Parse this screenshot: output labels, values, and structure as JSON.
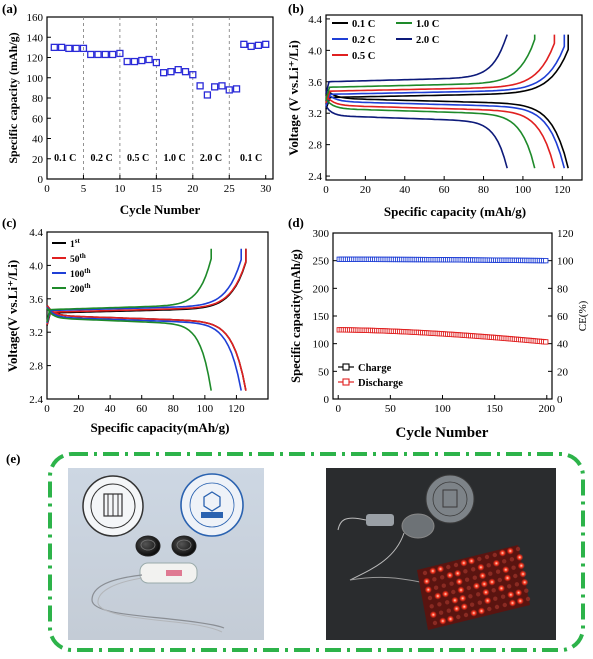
{
  "panel_labels": {
    "a": "(a)",
    "b": "(b)",
    "c": "(c)",
    "d": "(d)",
    "e": "(e)"
  },
  "colors": {
    "square_blue": "#2a2ad8",
    "green_border": "#2db34a",
    "red_led": "#ff2a1a"
  },
  "chart_data": [
    {
      "id": "a",
      "type": "scatter",
      "xlabel": "Cycle Number",
      "ylabel": "Specific capacity (mAh/g)",
      "xlim": [
        0,
        31
      ],
      "ylim": [
        0,
        160
      ],
      "xticks": [
        0,
        5,
        10,
        15,
        20,
        25,
        30
      ],
      "yticks": [
        0,
        20,
        40,
        60,
        80,
        100,
        120,
        140,
        160
      ],
      "marker": "open-square",
      "x": [
        1,
        2,
        3,
        4,
        5,
        6,
        7,
        8,
        9,
        10,
        11,
        12,
        13,
        14,
        15,
        16,
        17,
        18,
        19,
        20,
        21,
        22,
        23,
        24,
        25,
        26,
        27,
        28,
        29,
        30
      ],
      "values": [
        130,
        130,
        129,
        129,
        129,
        123,
        123,
        123,
        123,
        124,
        116,
        116,
        117,
        118,
        115,
        105,
        106,
        108,
        106,
        103,
        92,
        83,
        91,
        92,
        88,
        89,
        133,
        131,
        132,
        133
      ],
      "separators": [
        5,
        10,
        15,
        20,
        25
      ],
      "rate_labels": [
        "0.1 C",
        "0.2 C",
        "0.5 C",
        "1.0 C",
        "2.0 C",
        "0.1 C"
      ]
    },
    {
      "id": "b",
      "type": "line",
      "xlabel": "Specific capacity (mAh/g)",
      "ylabel": "Voltage (V vs.Li⁺/Li)",
      "xlim": [
        0,
        130
      ],
      "ylim": [
        2.35,
        4.45
      ],
      "xticks": [
        0,
        20,
        40,
        60,
        80,
        100,
        120
      ],
      "yticks": [
        2.4,
        2.8,
        3.2,
        3.6,
        4.0,
        4.4
      ],
      "legend": [
        "0.1 C",
        "1.0 C",
        "0.2 C",
        "2.0 C",
        "0.5 C"
      ],
      "series": [
        {
          "name": "0.1 C",
          "color": "#000000",
          "capacity": 123,
          "charge_plateau": 3.4,
          "discharge_plateau": 3.39,
          "discharge_end": 2.5
        },
        {
          "name": "0.2 C",
          "color": "#1f3fd6",
          "capacity": 121,
          "charge_plateau": 3.44,
          "discharge_plateau": 3.35,
          "discharge_end": 2.5
        },
        {
          "name": "0.5 C",
          "color": "#e02020",
          "capacity": 116,
          "charge_plateau": 3.48,
          "discharge_plateau": 3.3,
          "discharge_end": 2.5
        },
        {
          "name": "1.0 C",
          "color": "#1e8a2a",
          "capacity": 106,
          "charge_plateau": 3.53,
          "discharge_plateau": 3.26,
          "discharge_end": 2.5
        },
        {
          "name": "2.0 C",
          "color": "#0d1a7a",
          "capacity": 92,
          "charge_plateau": 3.6,
          "discharge_plateau": 3.17,
          "discharge_end": 2.5
        }
      ]
    },
    {
      "id": "c",
      "type": "line",
      "xlabel": "Specific capacity(mAh/g)",
      "ylabel": "Voltage(V vs.Li⁺/Li)",
      "xlim": [
        0,
        140
      ],
      "ylim": [
        2.4,
        4.4
      ],
      "xticks": [
        0,
        20,
        40,
        60,
        80,
        100,
        120
      ],
      "yticks": [
        2.4,
        2.8,
        3.2,
        3.6,
        4.0,
        4.4
      ],
      "legend": [
        {
          "base": "1",
          "sup": "st"
        },
        {
          "base": "50",
          "sup": "th"
        },
        {
          "base": "100",
          "sup": "th"
        },
        {
          "base": "200",
          "sup": "th"
        }
      ],
      "series": [
        {
          "name": "1st",
          "color": "#000000",
          "capacity": 126,
          "charge_plateau": 3.43,
          "discharge_plateau": 3.4,
          "discharge_end": 2.5
        },
        {
          "name": "50th",
          "color": "#e02020",
          "capacity": 126,
          "charge_plateau": 3.44,
          "discharge_plateau": 3.4,
          "discharge_end": 2.5
        },
        {
          "name": "100th",
          "color": "#1f3fd6",
          "capacity": 123,
          "charge_plateau": 3.46,
          "discharge_plateau": 3.38,
          "discharge_end": 2.5
        },
        {
          "name": "200th",
          "color": "#1e8a2a",
          "capacity": 104,
          "charge_plateau": 3.47,
          "discharge_plateau": 3.37,
          "discharge_end": 2.5
        }
      ]
    },
    {
      "id": "d",
      "type": "scatter",
      "xlabel": "Cycle Number",
      "ylabel": "Specific capacity(mAh/g)",
      "y2label": "CE(%)",
      "xlim": [
        -5,
        205
      ],
      "ylim": [
        0,
        300
      ],
      "y2lim": [
        0,
        120
      ],
      "xticks": [
        0,
        50,
        100,
        150,
        200
      ],
      "yticks": [
        0,
        50,
        100,
        150,
        200,
        250,
        300
      ],
      "y2ticks": [
        0,
        20,
        40,
        60,
        80,
        100,
        120
      ],
      "legend": [
        "Charge",
        "Discharge"
      ],
      "series": [
        {
          "name": "Charge",
          "color": "#1f3fd6",
          "axis": "right",
          "start": 101,
          "end": 100
        },
        {
          "name": "Discharge",
          "color": "#e02020",
          "axis": "left",
          "start": 125,
          "end": 103
        }
      ]
    }
  ]
}
